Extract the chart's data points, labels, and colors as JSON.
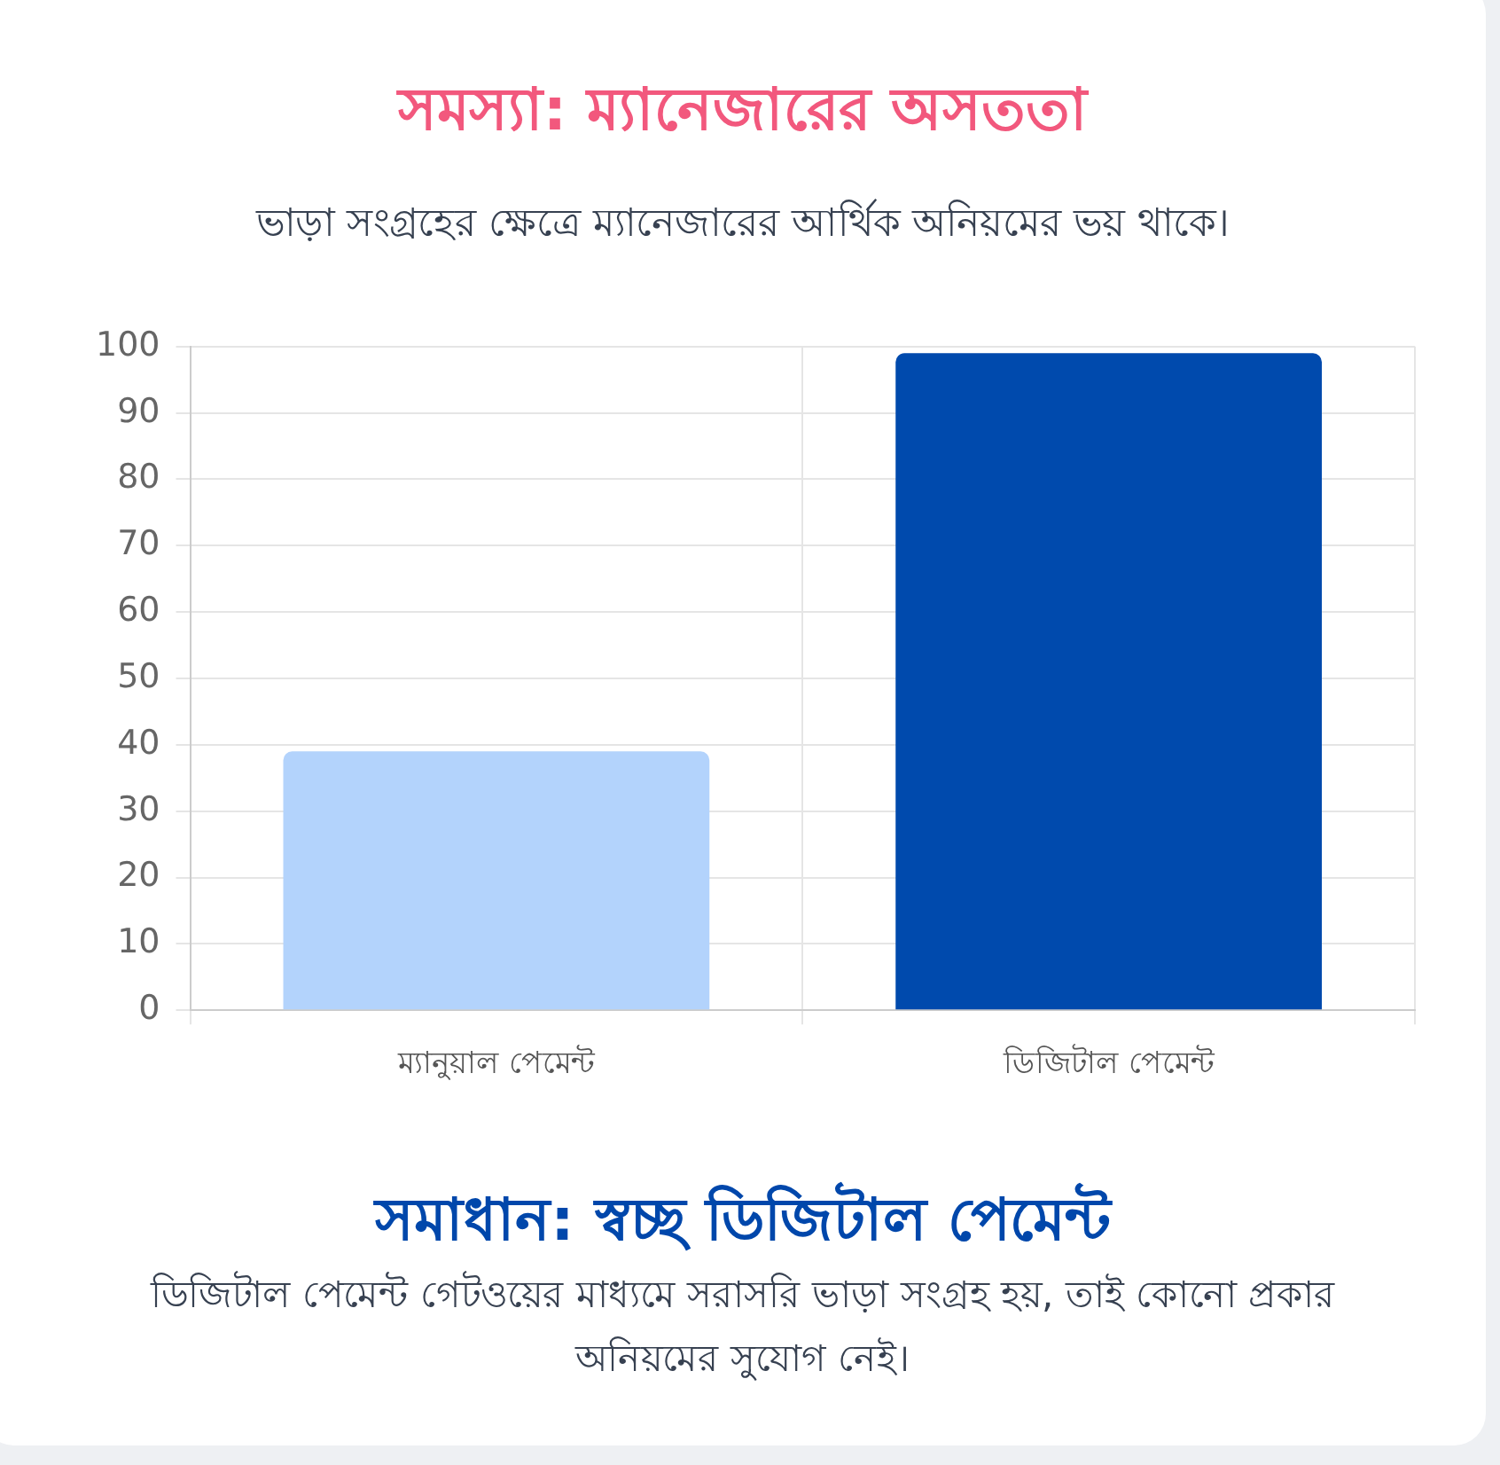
{
  "chart_data": {
    "type": "bar",
    "title": "সমস্যা: ম্যানেজারের অসততা",
    "subtitle": "ভাড়া সংগ্রহের ক্ষেত্রে ম্যানেজারের আর্থিক অনিয়মের ভয় থাকে।",
    "categories": [
      "ম্যানুয়াল পেমেন্ট",
      "ডিজিটাল পেমেন্ট"
    ],
    "values": [
      39,
      99
    ],
    "colors": [
      "#b3d3fc",
      "#004aad"
    ],
    "ylim": [
      0,
      100
    ],
    "yticks": [
      0,
      10,
      20,
      30,
      40,
      50,
      60,
      70,
      80,
      90,
      100
    ],
    "grid": true,
    "annotations": [
      "সমাধান: স্বচ্ছ ডিজিটাল পেমেন্ট",
      "ডিজিটাল পেমেন্ট গেটওয়ের মাধ্যমে সরাসরি ভাড়া সংগ্রহ হয়, তাই কোনো প্রকার অনিয়মের সুযোগ নেই।"
    ]
  }
}
